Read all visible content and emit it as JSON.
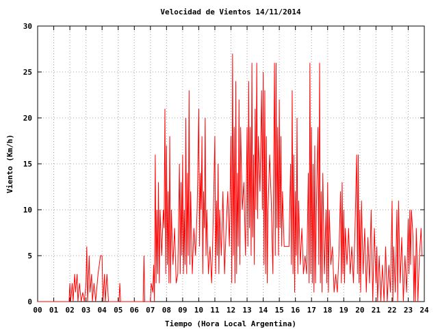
{
  "chart_data": {
    "type": "line",
    "title": "Velocidad de Vientos 14/11/2014",
    "x_label": "Tiempo (Hora Local Argentina)",
    "y_label": "Viento (Km/h)",
    "color": "#ff0000",
    "grid": true,
    "xlim": [
      0,
      24
    ],
    "ylim": [
      0,
      30
    ],
    "yticks": [
      0,
      5,
      10,
      15,
      20,
      25,
      30
    ],
    "xticks": [
      {
        "value": 0,
        "label": "00"
      },
      {
        "value": 1,
        "label": "01"
      },
      {
        "value": 2,
        "label": "02"
      },
      {
        "value": 3,
        "label": "03"
      },
      {
        "value": 4,
        "label": "04"
      },
      {
        "value": 5,
        "label": "05"
      },
      {
        "value": 6,
        "label": "06"
      },
      {
        "value": 7,
        "label": "07"
      },
      {
        "value": 8,
        "label": "08"
      },
      {
        "value": 9,
        "label": "09"
      },
      10,
      11,
      12,
      13,
      14,
      15,
      16,
      17,
      18,
      19,
      20,
      21,
      22,
      23,
      24
    ],
    "x": [
      0,
      1.95,
      2.0,
      2.05,
      2.15,
      2.2,
      2.3,
      2.35,
      2.45,
      2.5,
      2.6,
      2.7,
      2.8,
      2.9,
      3.0,
      3.05,
      3.1,
      3.2,
      3.25,
      3.35,
      3.4,
      3.5,
      3.6,
      3.75,
      3.9,
      4.0,
      4.05,
      4.15,
      4.2,
      4.3,
      4.4,
      4.5,
      5.05,
      5.1,
      5.15,
      6.55,
      6.6,
      6.65,
      7.0,
      7.05,
      7.15,
      7.2,
      7.25,
      7.3,
      7.35,
      7.4,
      7.45,
      7.5,
      7.55,
      7.6,
      7.7,
      7.8,
      7.85,
      7.9,
      7.95,
      8.0,
      8.05,
      8.1,
      8.15,
      8.2,
      8.25,
      8.3,
      8.4,
      8.5,
      8.6,
      8.7,
      8.8,
      8.85,
      8.9,
      8.95,
      9.0,
      9.05,
      9.1,
      9.15,
      9.2,
      9.25,
      9.3,
      9.35,
      9.4,
      9.45,
      9.5,
      9.6,
      9.7,
      9.8,
      9.9,
      9.95,
      10.0,
      10.05,
      10.1,
      10.15,
      10.2,
      10.25,
      10.3,
      10.35,
      10.4,
      10.45,
      10.5,
      10.6,
      10.7,
      10.8,
      10.9,
      11.0,
      11.05,
      11.1,
      11.15,
      11.2,
      11.25,
      11.3,
      11.4,
      11.5,
      11.6,
      11.7,
      11.8,
      11.9,
      12.0,
      12.05,
      12.1,
      12.15,
      12.2,
      12.25,
      12.3,
      12.35,
      12.4,
      12.45,
      12.5,
      12.55,
      12.6,
      12.7,
      12.8,
      12.9,
      13.0,
      13.05,
      13.1,
      13.15,
      13.2,
      13.25,
      13.3,
      13.35,
      13.4,
      13.45,
      13.5,
      13.55,
      13.6,
      13.65,
      13.7,
      13.8,
      13.9,
      13.95,
      14.0,
      14.05,
      14.1,
      14.15,
      14.2,
      14.25,
      14.3,
      14.4,
      14.5,
      14.6,
      14.7,
      14.75,
      14.8,
      14.85,
      14.9,
      14.95,
      15.0,
      15.05,
      15.1,
      15.15,
      15.2,
      15.3,
      15.4,
      15.5,
      15.6,
      15.7,
      15.75,
      15.8,
      15.85,
      15.9,
      15.95,
      16.0,
      16.05,
      16.1,
      16.15,
      16.2,
      16.3,
      16.4,
      16.5,
      16.6,
      16.7,
      16.8,
      16.85,
      16.9,
      16.95,
      17.0,
      17.05,
      17.1,
      17.15,
      17.2,
      17.25,
      17.3,
      17.4,
      17.45,
      17.5,
      17.55,
      17.6,
      17.65,
      17.7,
      17.8,
      17.9,
      17.95,
      18.0,
      18.05,
      18.1,
      18.2,
      18.3,
      18.4,
      18.5,
      18.6,
      18.7,
      18.8,
      18.85,
      18.9,
      18.95,
      19.0,
      19.05,
      19.1,
      19.2,
      19.3,
      19.4,
      19.5,
      19.6,
      19.7,
      19.8,
      19.85,
      19.9,
      19.95,
      20.0,
      20.05,
      20.1,
      20.2,
      20.3,
      20.4,
      20.5,
      20.6,
      20.7,
      20.8,
      20.9,
      21.0,
      21.05,
      21.1,
      21.2,
      21.3,
      21.4,
      21.5,
      21.6,
      21.7,
      21.8,
      21.9,
      22.0,
      22.05,
      22.1,
      22.2,
      22.3,
      22.35,
      22.4,
      22.5,
      22.6,
      22.7,
      22.8,
      22.9,
      23.0,
      23.05,
      23.1,
      23.15,
      23.2,
      23.3,
      23.35,
      23.4,
      23.45,
      23.5,
      23.55,
      23.6,
      23.7,
      23.8,
      23.85
    ],
    "values": [
      0,
      0,
      2,
      0,
      2,
      0,
      3,
      1,
      3,
      0,
      2,
      0,
      1,
      0,
      2,
      6,
      0,
      5,
      1,
      3,
      0,
      2,
      0,
      3,
      5,
      5,
      0,
      3,
      0,
      3,
      0,
      0,
      0,
      2,
      0,
      0,
      5,
      0,
      0,
      2,
      1,
      4,
      0,
      16,
      2,
      10,
      3,
      13,
      2,
      10,
      5,
      10,
      8,
      21,
      3,
      17,
      4,
      12,
      2,
      18,
      2,
      10,
      4,
      8,
      2,
      3,
      15,
      3,
      13,
      5,
      16,
      3,
      10,
      4,
      20,
      3,
      14,
      5,
      23,
      4,
      12,
      3,
      8,
      5,
      10,
      15,
      21,
      6,
      14,
      10,
      18,
      3,
      12,
      8,
      20,
      5,
      10,
      3,
      6,
      2,
      9,
      18,
      3,
      11,
      5,
      15,
      3,
      10,
      5,
      12,
      3,
      8,
      12,
      6,
      18,
      2,
      27,
      5,
      19,
      2,
      24,
      3,
      14,
      6,
      22,
      4,
      19,
      10,
      13,
      5,
      19,
      6,
      24,
      8,
      19,
      5,
      26,
      7,
      16,
      4,
      21,
      10,
      26,
      9,
      18,
      12,
      23,
      10,
      25,
      4,
      23,
      3,
      18,
      2,
      10,
      16,
      11,
      3,
      26,
      5,
      26,
      8,
      19,
      5,
      22,
      8,
      18,
      6,
      12,
      6,
      6,
      6,
      6,
      15,
      4,
      23,
      3,
      16,
      1,
      12,
      5,
      20,
      3,
      11,
      4,
      8,
      3,
      5,
      3,
      14,
      2,
      26,
      3,
      19,
      2,
      15,
      1,
      17,
      2,
      10,
      19,
      4,
      26,
      2,
      12,
      1,
      14,
      3,
      10,
      2,
      13,
      1,
      10,
      4,
      6,
      1,
      3,
      1,
      5,
      12,
      2,
      13,
      3,
      10,
      2,
      8,
      4,
      8,
      3,
      6,
      2,
      8,
      16,
      3,
      16,
      2,
      10,
      1,
      11,
      3,
      8,
      1,
      7,
      2,
      10,
      0,
      8,
      2,
      6,
      0,
      5,
      0,
      4,
      0,
      6,
      0,
      4,
      1,
      11,
      0,
      6,
      1,
      10,
      0,
      11,
      2,
      7,
      0,
      5,
      1,
      9,
      3,
      10,
      4,
      10,
      7,
      0,
      5,
      0,
      8,
      5,
      0,
      5,
      8,
      5
    ]
  }
}
